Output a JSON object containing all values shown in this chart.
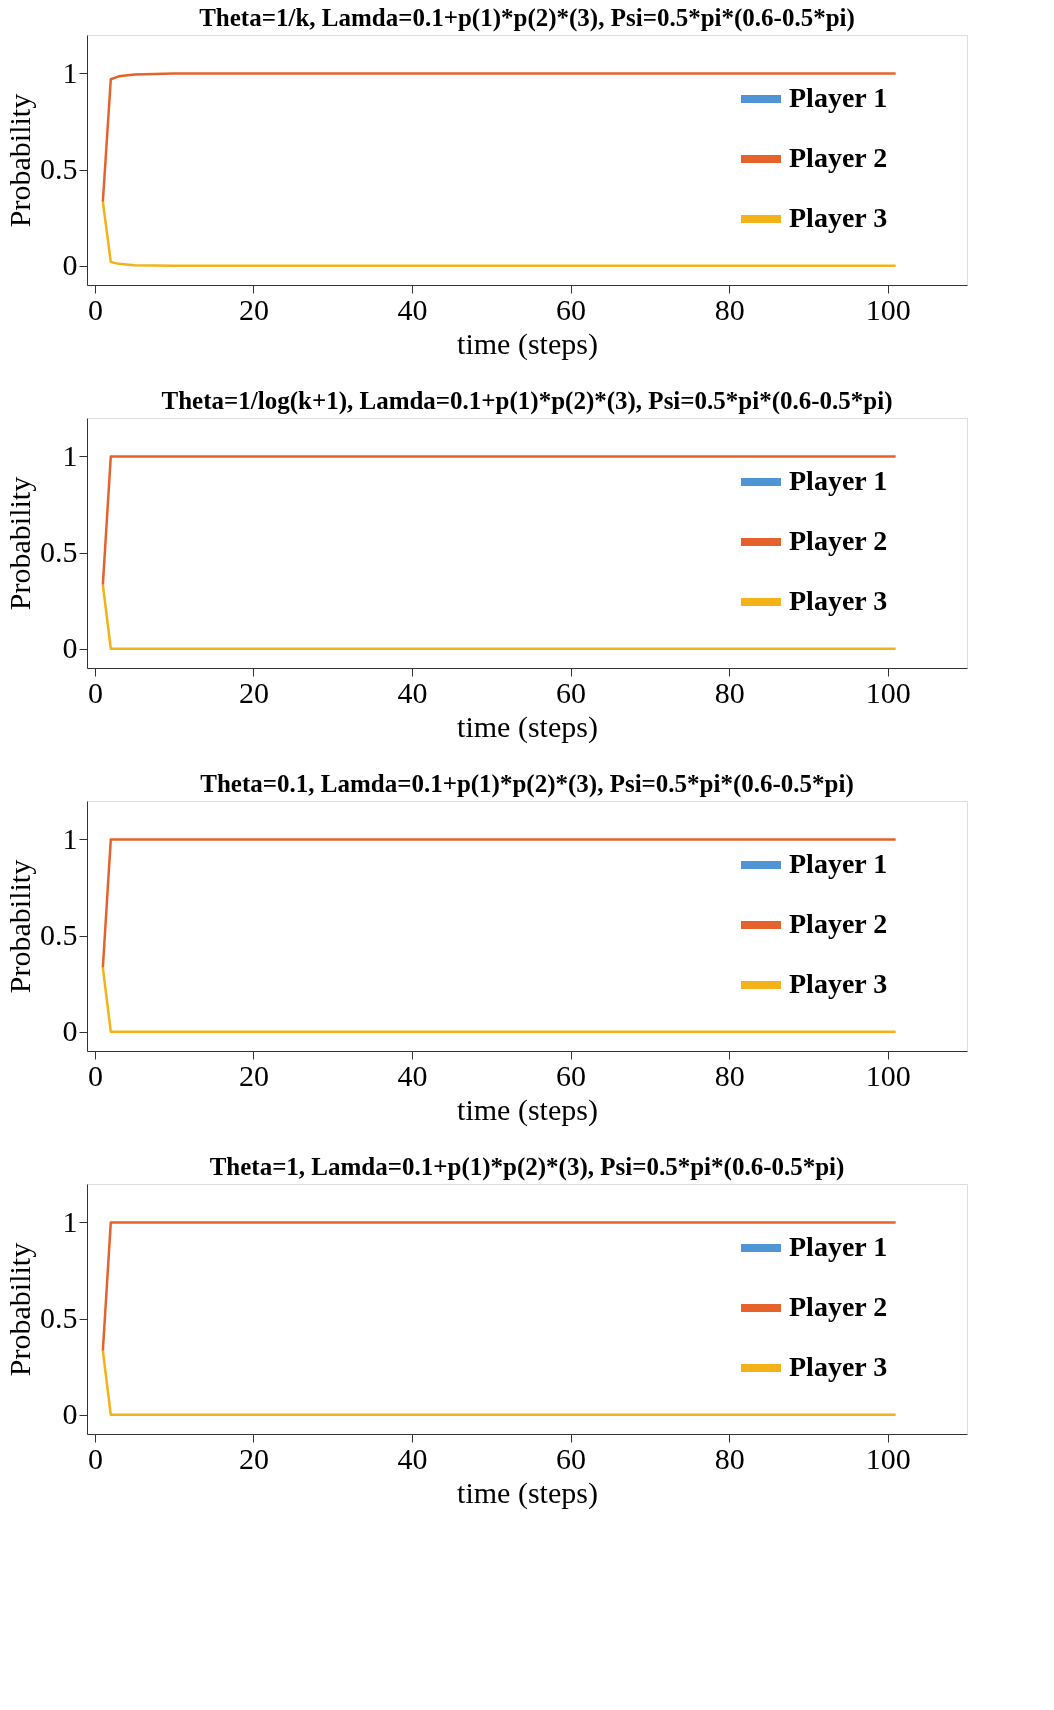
{
  "chart_data": [
    {
      "type": "line",
      "title": "Theta=1/k, Lamda=0.1+p(1)*p(2)*(3), Psi=0.5*pi*(0.6-0.5*pi)",
      "xlabel": "time (steps)",
      "ylabel": "Probability",
      "xlim": [
        -1,
        110
      ],
      "ylim": [
        -0.1,
        1.2
      ],
      "xticks": [
        0,
        20,
        40,
        60,
        80,
        100
      ],
      "yticks": [
        0,
        0.5,
        1
      ],
      "legend": "right",
      "grid": false,
      "x": [
        1,
        2,
        3,
        5,
        10,
        101
      ],
      "series": [
        {
          "name": "Player 1",
          "color": "#4f94d4",
          "values": [
            null,
            null,
            null,
            null,
            null,
            null
          ]
        },
        {
          "name": "Player 2",
          "color": "#e5622a",
          "values": [
            0.333,
            0.97,
            0.985,
            0.995,
            1,
            1
          ]
        },
        {
          "name": "Player 3",
          "color": "#f2b218",
          "values": [
            0.333,
            0.02,
            0.01,
            0.003,
            0,
            0
          ]
        }
      ]
    },
    {
      "type": "line",
      "title": "Theta=1/log(k+1), Lamda=0.1+p(1)*p(2)*(3), Psi=0.5*pi*(0.6-0.5*pi)",
      "xlabel": "time (steps)",
      "ylabel": "Probability",
      "xlim": [
        -1,
        110
      ],
      "ylim": [
        -0.1,
        1.2
      ],
      "xticks": [
        0,
        20,
        40,
        60,
        80,
        100
      ],
      "yticks": [
        0,
        0.5,
        1
      ],
      "legend": "right",
      "grid": false,
      "x": [
        1,
        2,
        101
      ],
      "series": [
        {
          "name": "Player 1",
          "color": "#4f94d4",
          "values": [
            null,
            null,
            null
          ]
        },
        {
          "name": "Player 2",
          "color": "#e5622a",
          "values": [
            0.333,
            1,
            1
          ]
        },
        {
          "name": "Player 3",
          "color": "#f2b218",
          "values": [
            0.333,
            0,
            0
          ]
        }
      ]
    },
    {
      "type": "line",
      "title": "Theta=0.1, Lamda=0.1+p(1)*p(2)*(3), Psi=0.5*pi*(0.6-0.5*pi)",
      "xlabel": "time (steps)",
      "ylabel": "Probability",
      "xlim": [
        -1,
        110
      ],
      "ylim": [
        -0.1,
        1.2
      ],
      "xticks": [
        0,
        20,
        40,
        60,
        80,
        100
      ],
      "yticks": [
        0,
        0.5,
        1
      ],
      "legend": "right",
      "grid": false,
      "x": [
        1,
        2,
        101
      ],
      "series": [
        {
          "name": "Player 1",
          "color": "#4f94d4",
          "values": [
            null,
            null,
            null
          ]
        },
        {
          "name": "Player 2",
          "color": "#e5622a",
          "values": [
            0.333,
            1,
            1
          ]
        },
        {
          "name": "Player 3",
          "color": "#f2b218",
          "values": [
            0.333,
            0,
            0
          ]
        }
      ]
    },
    {
      "type": "line",
      "title": "Theta=1, Lamda=0.1+p(1)*p(2)*(3), Psi=0.5*pi*(0.6-0.5*pi)",
      "xlabel": "time (steps)",
      "ylabel": "Probability",
      "xlim": [
        -1,
        110
      ],
      "ylim": [
        -0.1,
        1.2
      ],
      "xticks": [
        0,
        20,
        40,
        60,
        80,
        100
      ],
      "yticks": [
        0,
        0.5,
        1
      ],
      "legend": "right",
      "grid": false,
      "x": [
        1,
        2,
        101
      ],
      "series": [
        {
          "name": "Player 1",
          "color": "#4f94d4",
          "values": [
            null,
            null,
            null
          ]
        },
        {
          "name": "Player 2",
          "color": "#e5622a",
          "values": [
            0.333,
            1,
            1
          ]
        },
        {
          "name": "Player 3",
          "color": "#f2b218",
          "values": [
            0.333,
            0,
            0
          ]
        }
      ]
    }
  ]
}
